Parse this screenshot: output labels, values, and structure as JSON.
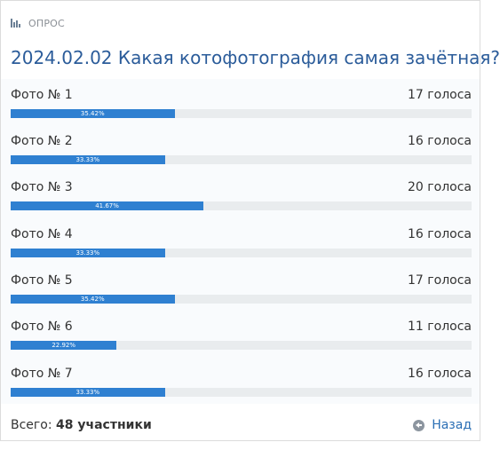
{
  "poll": {
    "label": "ОПРОС",
    "title": "2024.02.02 Какая котофотография самая зачётная?",
    "options": [
      {
        "name": "Фото № 1",
        "votes": "17 голоса",
        "percent": 35.42,
        "percent_label": "35.42%"
      },
      {
        "name": "Фото № 2",
        "votes": "16 голоса",
        "percent": 33.33,
        "percent_label": "33.33%"
      },
      {
        "name": "Фото № 3",
        "votes": "20 голоса",
        "percent": 41.67,
        "percent_label": "41.67%"
      },
      {
        "name": "Фото № 4",
        "votes": "16 голоса",
        "percent": 33.33,
        "percent_label": "33.33%"
      },
      {
        "name": "Фото № 5",
        "votes": "17 голоса",
        "percent": 35.42,
        "percent_label": "35.42%"
      },
      {
        "name": "Фото № 6",
        "votes": "11 голоса",
        "percent": 22.92,
        "percent_label": "22.92%"
      },
      {
        "name": "Фото № 7",
        "votes": "16 голоса",
        "percent": 33.33,
        "percent_label": "33.33%"
      }
    ],
    "total_prefix": "Всего:",
    "total_value": "48 участники",
    "back_label": "Назад"
  },
  "icons": {
    "header": "bar-chart-icon",
    "back": "arrow-left-circle-icon"
  },
  "colors": {
    "accent": "#2f80d1",
    "title": "#2b5c9a",
    "link": "#2b6fb5",
    "track": "#e9ecee"
  }
}
